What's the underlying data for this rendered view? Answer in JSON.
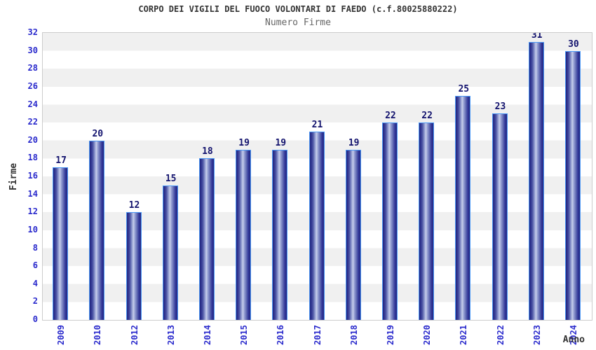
{
  "header": {
    "title": "CORPO DEI VIGILI DEL FUOCO VOLONTARI DI FAEDO (c.f.80025880222)",
    "subtitle": "Numero Firme"
  },
  "chart_data": {
    "type": "bar",
    "title": "CORPO DEI VIGILI DEL FUOCO VOLONTARI DI FAEDO (c.f.80025880222)",
    "subtitle": "Numero Firme",
    "xlabel": "Anno",
    "ylabel": "Firme",
    "categories": [
      "2009",
      "2010",
      "2012",
      "2013",
      "2014",
      "2015",
      "2016",
      "2017",
      "2018",
      "2019",
      "2020",
      "2021",
      "2022",
      "2023",
      "2024"
    ],
    "values": [
      17,
      20,
      12,
      15,
      18,
      19,
      19,
      21,
      19,
      22,
      22,
      25,
      23,
      31,
      30
    ],
    "ylim": [
      0,
      32
    ],
    "ytick_step": 2,
    "legend": "none",
    "grid": "alternating horizontal gray/white bands every 2 units",
    "colors": {
      "tick_label": "#2a2acc",
      "value_label": "#13136e",
      "bar_edge": "#23277f",
      "bar_center": "#c9cfeb",
      "bar_border": "#4a97f5",
      "band_gray": "#f0f0f0",
      "band_white": "#ffffff",
      "plot_border": "#cccccc",
      "title_color": "#333333",
      "subtitle_color": "#666666"
    }
  }
}
